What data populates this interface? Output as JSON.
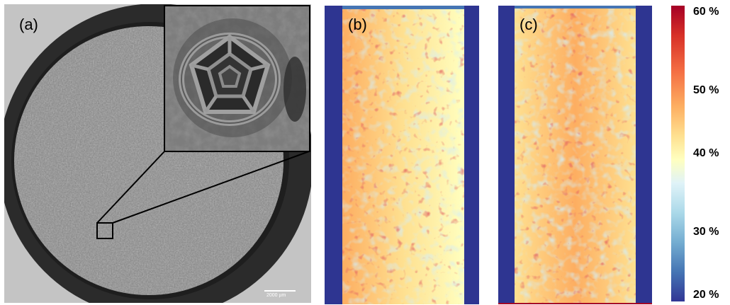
{
  "panels": {
    "a": {
      "label": "(a)",
      "scalebar": "2000 µm"
    },
    "b": {
      "label": "(b)"
    },
    "c": {
      "label": "(c)"
    }
  },
  "colorbar": {
    "ticks": [
      "60 %",
      "50 %",
      "40 %",
      "30 %",
      "20 %"
    ],
    "colors": [
      "#a50026",
      "#d73027",
      "#f46d43",
      "#fdae61",
      "#fee090",
      "#ffffbf",
      "#e0f3f8",
      "#abd9e9",
      "#74add1",
      "#4575b4",
      "#313695"
    ]
  },
  "colors": {
    "frame_blue": "#2e3591"
  }
}
